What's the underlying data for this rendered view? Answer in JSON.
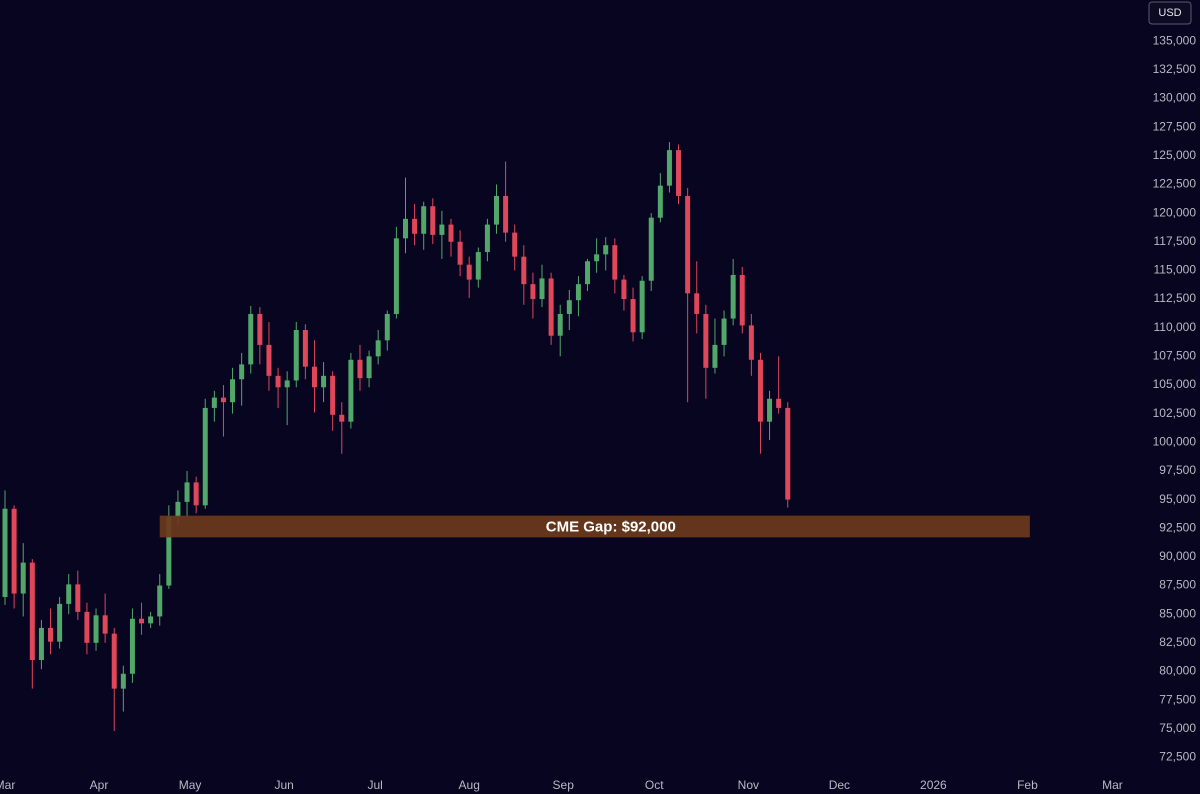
{
  "chart_data": {
    "type": "candlestick",
    "currency": "USD",
    "background": "#07051f",
    "up_color": "#52a86a",
    "down_color": "#e0475b",
    "grid": false,
    "ylim": [
      71400,
      138600
    ],
    "yticks": [
      {
        "value": 72500,
        "label": "72,500"
      },
      {
        "value": 75000,
        "label": "75,000"
      },
      {
        "value": 77500,
        "label": "77,500"
      },
      {
        "value": 80000,
        "label": "80,000"
      },
      {
        "value": 82500,
        "label": "82,500"
      },
      {
        "value": 85000,
        "label": "85,000"
      },
      {
        "value": 87500,
        "label": "87,500"
      },
      {
        "value": 90000,
        "label": "90,000"
      },
      {
        "value": 92500,
        "label": "92,500"
      },
      {
        "value": 95000,
        "label": "95,000"
      },
      {
        "value": 97500,
        "label": "97,500"
      },
      {
        "value": 100000,
        "label": "100,000"
      },
      {
        "value": 102500,
        "label": "102,500"
      },
      {
        "value": 105000,
        "label": "105,000"
      },
      {
        "value": 107500,
        "label": "107,500"
      },
      {
        "value": 110000,
        "label": "110,000"
      },
      {
        "value": 112500,
        "label": "112,500"
      },
      {
        "value": 115000,
        "label": "115,000"
      },
      {
        "value": 117500,
        "label": "117,500"
      },
      {
        "value": 120000,
        "label": "120,000"
      },
      {
        "value": 122500,
        "label": "122,500"
      },
      {
        "value": 125000,
        "label": "125,000"
      },
      {
        "value": 127500,
        "label": "127,500"
      },
      {
        "value": 130000,
        "label": "130,000"
      },
      {
        "value": 132500,
        "label": "132,500"
      },
      {
        "value": 135000,
        "label": "135,000"
      }
    ],
    "xlim": [
      -0.55,
      124.7
    ],
    "xticks": [
      {
        "value": 0,
        "label": "Mar"
      },
      {
        "value": 10.33,
        "label": "Apr"
      },
      {
        "value": 20.33,
        "label": "May"
      },
      {
        "value": 30.67,
        "label": "Jun"
      },
      {
        "value": 40.67,
        "label": "Jul"
      },
      {
        "value": 51,
        "label": "Aug"
      },
      {
        "value": 61.33,
        "label": "Sep"
      },
      {
        "value": 71.33,
        "label": "Oct"
      },
      {
        "value": 81.67,
        "label": "Nov"
      },
      {
        "value": 91.67,
        "label": "Dec"
      },
      {
        "value": 102,
        "label": "2026"
      },
      {
        "value": 112.33,
        "label": "Feb"
      },
      {
        "value": 121.67,
        "label": "Mar"
      }
    ],
    "ohlc": [
      [
        86500,
        95800,
        85800,
        94200
      ],
      [
        94200,
        94500,
        85500,
        86800
      ],
      [
        86800,
        91200,
        84800,
        89500
      ],
      [
        89500,
        89800,
        78500,
        81000
      ],
      [
        81000,
        84500,
        80200,
        83800
      ],
      [
        83800,
        85500,
        81500,
        82600
      ],
      [
        82600,
        86500,
        82000,
        85900
      ],
      [
        85900,
        88500,
        85000,
        87600
      ],
      [
        87600,
        88800,
        84500,
        85200
      ],
      [
        85200,
        86000,
        81500,
        82500
      ],
      [
        82500,
        85500,
        81800,
        84900
      ],
      [
        84900,
        86800,
        82500,
        83300
      ],
      [
        83300,
        83800,
        74800,
        78500
      ],
      [
        78500,
        80500,
        76500,
        79800
      ],
      [
        79800,
        85500,
        79000,
        84600
      ],
      [
        84600,
        86000,
        83200,
        84200
      ],
      [
        84200,
        85200,
        83800,
        84800
      ],
      [
        84800,
        88500,
        84000,
        87500
      ],
      [
        87500,
        94500,
        87200,
        93500
      ],
      [
        93500,
        95800,
        92800,
        94800
      ],
      [
        94800,
        97500,
        93500,
        96500
      ],
      [
        96500,
        97000,
        93800,
        94500
      ],
      [
        94500,
        103800,
        94200,
        103000
      ],
      [
        103000,
        104500,
        101800,
        103900
      ],
      [
        103900,
        105000,
        100500,
        103500
      ],
      [
        103500,
        106500,
        102500,
        105500
      ],
      [
        105500,
        107800,
        103200,
        106800
      ],
      [
        106800,
        111900,
        106000,
        111200
      ],
      [
        111200,
        111800,
        106800,
        108500
      ],
      [
        108500,
        110500,
        104500,
        105800
      ],
      [
        105800,
        106500,
        103000,
        104800
      ],
      [
        104800,
        106200,
        101500,
        105400
      ],
      [
        105400,
        110500,
        104800,
        109800
      ],
      [
        109800,
        110300,
        105500,
        106600
      ],
      [
        106600,
        108900,
        102600,
        104800
      ],
      [
        104800,
        107000,
        103500,
        105800
      ],
      [
        105800,
        106200,
        101000,
        102400
      ],
      [
        102400,
        103500,
        99000,
        101800
      ],
      [
        101800,
        107800,
        101200,
        107200
      ],
      [
        107200,
        108500,
        104500,
        105600
      ],
      [
        105600,
        108000,
        104800,
        107500
      ],
      [
        107500,
        109800,
        106800,
        108900
      ],
      [
        108900,
        111500,
        108000,
        111200
      ],
      [
        111200,
        118800,
        110800,
        117800
      ],
      [
        117800,
        123100,
        116500,
        119500
      ],
      [
        119500,
        120800,
        117200,
        118200
      ],
      [
        118200,
        121000,
        116800,
        120600
      ],
      [
        120600,
        121300,
        117300,
        118100
      ],
      [
        118100,
        120200,
        116000,
        119000
      ],
      [
        119000,
        119500,
        116200,
        117500
      ],
      [
        117500,
        118500,
        114500,
        115500
      ],
      [
        115500,
        116200,
        112600,
        114200
      ],
      [
        114200,
        117000,
        113500,
        116600
      ],
      [
        116600,
        119500,
        115800,
        119000
      ],
      [
        119000,
        122500,
        118200,
        121500
      ],
      [
        121500,
        124500,
        117500,
        118300
      ],
      [
        118300,
        119000,
        115000,
        116200
      ],
      [
        116200,
        117200,
        112000,
        113800
      ],
      [
        113800,
        114800,
        110800,
        112500
      ],
      [
        112500,
        115500,
        111800,
        114300
      ],
      [
        114300,
        114800,
        108500,
        109300
      ],
      [
        109300,
        112000,
        107500,
        111200
      ],
      [
        111200,
        113300,
        109800,
        112400
      ],
      [
        112400,
        114500,
        111000,
        113800
      ],
      [
        113800,
        116000,
        113200,
        115800
      ],
      [
        115800,
        117800,
        114800,
        116400
      ],
      [
        116400,
        117900,
        115000,
        117200
      ],
      [
        117200,
        117800,
        113000,
        114200
      ],
      [
        114200,
        114600,
        111500,
        112500
      ],
      [
        112500,
        113500,
        108800,
        109600
      ],
      [
        109600,
        114500,
        109000,
        114100
      ],
      [
        114100,
        120000,
        113200,
        119600
      ],
      [
        119600,
        123500,
        119200,
        122400
      ],
      [
        122400,
        126200,
        121800,
        125500
      ],
      [
        125500,
        126000,
        120800,
        121500
      ],
      [
        121500,
        122200,
        103500,
        113000
      ],
      [
        113000,
        115800,
        109500,
        111200
      ],
      [
        111200,
        112000,
        103800,
        106500
      ],
      [
        106500,
        110800,
        106000,
        108500
      ],
      [
        108500,
        111500,
        107500,
        110800
      ],
      [
        110800,
        116000,
        110200,
        114600
      ],
      [
        114600,
        115300,
        109500,
        110200
      ],
      [
        110200,
        111200,
        105800,
        107200
      ],
      [
        107200,
        107800,
        99000,
        101800
      ],
      [
        101800,
        104500,
        100200,
        103800
      ],
      [
        103800,
        107500,
        102500,
        103000
      ],
      [
        103000,
        103500,
        94300,
        95000
      ]
    ],
    "gap": {
      "label": "CME Gap: $92,000",
      "low": 91700,
      "high": 93600,
      "xrange": [
        17,
        112.6
      ],
      "color": "#6b3a1c"
    }
  }
}
